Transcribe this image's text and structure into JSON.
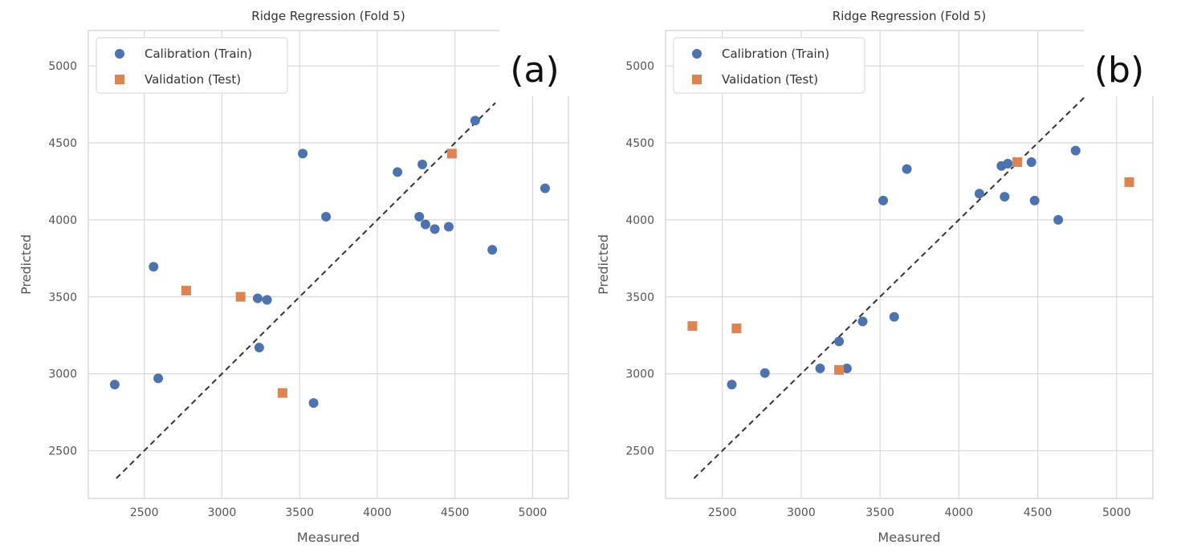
{
  "chart_data": [
    {
      "type": "scatter",
      "title": "Ridge Regression (Fold 5)",
      "panel_label": "(a)",
      "xlabel": "Measured",
      "ylabel": "Predicted",
      "xlim": [
        2140,
        5230
      ],
      "ylim": [
        2190,
        5230
      ],
      "xticks": [
        2500,
        3000,
        3500,
        4000,
        4500,
        5000
      ],
      "yticks": [
        2500,
        3000,
        3500,
        4000,
        4500,
        5000
      ],
      "grid": true,
      "legend_position": "top-left",
      "reference_line": {
        "style": "dashed",
        "x": [
          2320,
          4760
        ],
        "y": [
          2320,
          4760
        ]
      },
      "series": [
        {
          "name": "Calibration (Train)",
          "marker": "circle",
          "color": "#4c72b0",
          "points": [
            [
              2310,
              2930
            ],
            [
              2560,
              3695
            ],
            [
              2590,
              2970
            ],
            [
              3230,
              3490
            ],
            [
              3240,
              3170
            ],
            [
              3290,
              3480
            ],
            [
              3520,
              4430
            ],
            [
              3590,
              2810
            ],
            [
              3670,
              4020
            ],
            [
              4130,
              4310
            ],
            [
              4270,
              4020
            ],
            [
              4290,
              4360
            ],
            [
              4310,
              3970
            ],
            [
              4370,
              3940
            ],
            [
              4460,
              3955
            ],
            [
              4630,
              4645
            ],
            [
              4740,
              3805
            ],
            [
              5080,
              4205
            ]
          ]
        },
        {
          "name": "Validation (Test)",
          "marker": "square",
          "color": "#dd8452",
          "points": [
            [
              2770,
              3540
            ],
            [
              3120,
              3500
            ],
            [
              3390,
              2875
            ],
            [
              4480,
              4430
            ]
          ]
        }
      ]
    },
    {
      "type": "scatter",
      "title": "Ridge Regression (Fold 5)",
      "panel_label": "(b)",
      "xlabel": "Measured",
      "ylabel": "Predicted",
      "xlim": [
        2140,
        5230
      ],
      "ylim": [
        2190,
        5230
      ],
      "xticks": [
        2500,
        3000,
        3500,
        4000,
        4500,
        5000
      ],
      "yticks": [
        2500,
        3000,
        3500,
        4000,
        4500,
        5000
      ],
      "grid": true,
      "legend_position": "top-left",
      "reference_line": {
        "style": "dashed",
        "x": [
          2320,
          4820
        ],
        "y": [
          2320,
          4820
        ]
      },
      "series": [
        {
          "name": "Calibration (Train)",
          "marker": "circle",
          "color": "#4c72b0",
          "points": [
            [
              2560,
              2930
            ],
            [
              2770,
              3005
            ],
            [
              3120,
              3035
            ],
            [
              3240,
              3210
            ],
            [
              3290,
              3035
            ],
            [
              3390,
              3340
            ],
            [
              3520,
              4125
            ],
            [
              3590,
              3370
            ],
            [
              3670,
              4330
            ],
            [
              4130,
              4170
            ],
            [
              4270,
              4350
            ],
            [
              4290,
              4150
            ],
            [
              4310,
              4365
            ],
            [
              4460,
              4375
            ],
            [
              4480,
              4125
            ],
            [
              4630,
              4000
            ],
            [
              4740,
              4450
            ]
          ]
        },
        {
          "name": "Validation (Test)",
          "marker": "square",
          "color": "#dd8452",
          "points": [
            [
              2310,
              3310
            ],
            [
              2590,
              3295
            ],
            [
              3240,
              3025
            ],
            [
              4370,
              4375
            ],
            [
              5080,
              4245
            ]
          ]
        }
      ]
    }
  ]
}
